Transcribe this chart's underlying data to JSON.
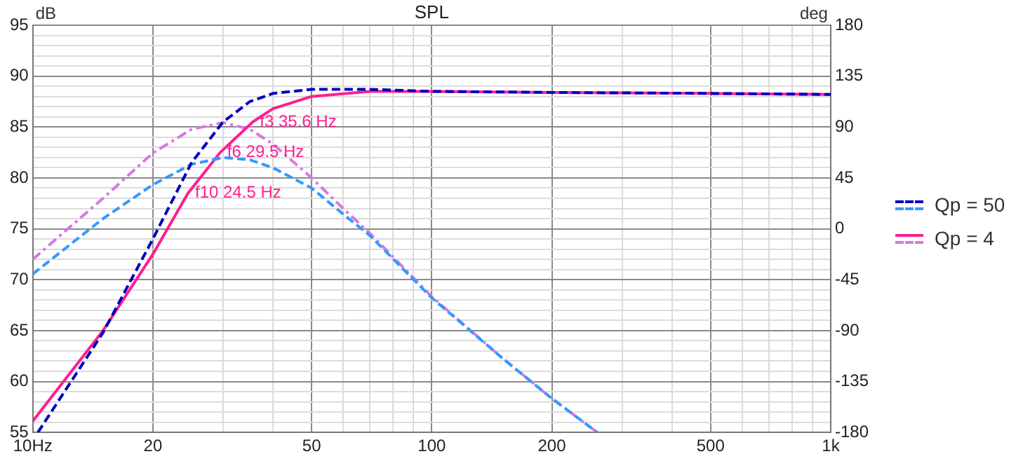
{
  "chart_data": {
    "type": "line",
    "title": "SPL",
    "ylabel": "dB",
    "y2label": "deg",
    "log": "x",
    "grid": true,
    "legend": "right",
    "xlim": [
      10,
      1000
    ],
    "xticks": [
      {
        "value": 10,
        "label": "10Hz"
      },
      20,
      {
        "value": 30,
        "label": null
      },
      {
        "value": 40,
        "label": null
      },
      50,
      {
        "value": 60,
        "label": null
      },
      {
        "value": 70,
        "label": null
      },
      {
        "value": 80,
        "label": null
      },
      {
        "value": 90,
        "label": null
      },
      100,
      200,
      {
        "value": 300,
        "label": null
      },
      {
        "value": 400,
        "label": null
      },
      500,
      {
        "value": 600,
        "label": null
      },
      {
        "value": 700,
        "label": null
      },
      {
        "value": 800,
        "label": null
      },
      {
        "value": 900,
        "label": null
      },
      {
        "value": 1000,
        "label": "1k"
      }
    ],
    "ylim": [
      55,
      95
    ],
    "yticks": [
      55,
      {
        "value": 56,
        "label": null
      },
      {
        "value": 57,
        "label": null
      },
      {
        "value": 58,
        "label": null
      },
      {
        "value": 59,
        "label": null
      },
      60,
      {
        "value": 61,
        "label": null
      },
      {
        "value": 62,
        "label": null
      },
      {
        "value": 63,
        "label": null
      },
      {
        "value": 64,
        "label": null
      },
      65,
      {
        "value": 66,
        "label": null
      },
      {
        "value": 67,
        "label": null
      },
      {
        "value": 68,
        "label": null
      },
      {
        "value": 69,
        "label": null
      },
      70,
      {
        "value": 71,
        "label": null
      },
      {
        "value": 72,
        "label": null
      },
      {
        "value": 73,
        "label": null
      },
      {
        "value": 74,
        "label": null
      },
      75,
      {
        "value": 76,
        "label": null
      },
      {
        "value": 77,
        "label": null
      },
      {
        "value": 78,
        "label": null
      },
      {
        "value": 79,
        "label": null
      },
      80,
      {
        "value": 81,
        "label": null
      },
      {
        "value": 82,
        "label": null
      },
      {
        "value": 83,
        "label": null
      },
      {
        "value": 84,
        "label": null
      },
      85,
      {
        "value": 86,
        "label": null
      },
      {
        "value": 87,
        "label": null
      },
      {
        "value": 88,
        "label": null
      },
      {
        "value": 89,
        "label": null
      },
      90,
      {
        "value": 91,
        "label": null
      },
      {
        "value": 92,
        "label": null
      },
      {
        "value": 93,
        "label": null
      },
      {
        "value": 94,
        "label": null
      },
      95
    ],
    "y2lim": [
      -180,
      180
    ],
    "y2ticks": [
      -180,
      -135,
      -90,
      -45,
      0,
      45,
      90,
      135,
      180
    ],
    "series": [
      {
        "name": "Qp = 50",
        "color": "#0000c0",
        "line_style": "dashed",
        "x": [
          10.3,
          15,
          20,
          25,
          30,
          35,
          40,
          50,
          70,
          100,
          200,
          500,
          1000
        ],
        "values": [
          55,
          64.8,
          74,
          81.5,
          85.5,
          87.5,
          88.3,
          88.7,
          88.7,
          88.5,
          88.4,
          88.3,
          88.2
        ]
      },
      {
        "color": "#3399ff",
        "line_style": "dashed",
        "axis": "y2",
        "x": [
          10,
          15,
          20,
          25,
          30,
          35,
          40,
          50,
          60,
          70,
          100,
          150,
          200,
          260
        ],
        "values": [
          -40,
          9,
          39,
          57,
          63,
          61,
          54,
          36,
          13,
          -6,
          -61,
          -114,
          -150,
          -180
        ]
      },
      {
        "name": "Qp = 4",
        "color": "#ff1f8f",
        "line_style": "solid",
        "x": [
          10,
          15,
          20,
          24.5,
          29.5,
          35.6,
          40,
          50,
          70,
          100,
          200,
          500,
          1000
        ],
        "values": [
          56.1,
          65,
          72.5,
          78.5,
          82.5,
          85.5,
          86.8,
          88,
          88.5,
          88.5,
          88.4,
          88.3,
          88.2
        ]
      },
      {
        "color": "#d878e0",
        "line_style": "dashdot",
        "axis": "y2",
        "x": [
          10,
          15,
          20,
          25,
          30,
          35,
          40,
          50,
          60,
          70,
          100,
          150,
          200,
          260
        ],
        "values": [
          -27,
          27,
          67,
          88,
          94,
          88,
          75,
          45,
          18,
          -4,
          -60,
          -114,
          -150,
          -180
        ]
      }
    ],
    "annotations": [
      {
        "text": "f3 35.6 Hz",
        "x": 35.6,
        "y": 85.5
      },
      {
        "text": "f6 29.5 Hz",
        "x": 29.5,
        "y": 82.5
      },
      {
        "text": "f10 24.5 Hz",
        "x": 24.5,
        "y": 78.5
      }
    ]
  }
}
